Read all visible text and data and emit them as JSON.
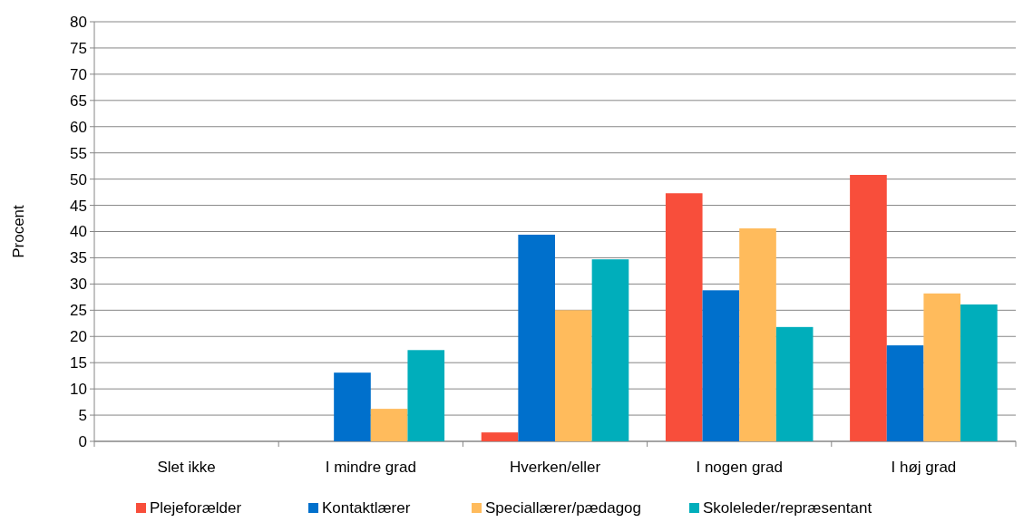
{
  "chart_data": {
    "type": "bar",
    "ylabel": "Procent",
    "categories": [
      "Slet ikke",
      "I mindre grad",
      "Hverken/eller",
      "I nogen grad",
      "I høj grad"
    ],
    "series": [
      {
        "name": "Plejeforælder",
        "color": "#f84e3b",
        "values": [
          0,
          0,
          1.7,
          47.3,
          50.8
        ]
      },
      {
        "name": "Kontaktlærer",
        "color": "#0070cc",
        "values": [
          0,
          13.1,
          39.4,
          28.8,
          18.3
        ]
      },
      {
        "name": "Speciallærer/pædagog",
        "color": "#ffbb5c",
        "values": [
          0,
          6.2,
          25.0,
          40.6,
          28.2
        ]
      },
      {
        "name": "Skoleleder/repræsentant",
        "color": "#00aebb",
        "values": [
          0,
          17.4,
          34.7,
          21.8,
          26.1
        ]
      }
    ],
    "ylim": [
      0,
      80
    ],
    "yticks": [
      0,
      5,
      10,
      15,
      20,
      25,
      30,
      35,
      40,
      45,
      50,
      55,
      60,
      65,
      70,
      75,
      80
    ],
    "grid": "y",
    "legend": "bottom"
  }
}
